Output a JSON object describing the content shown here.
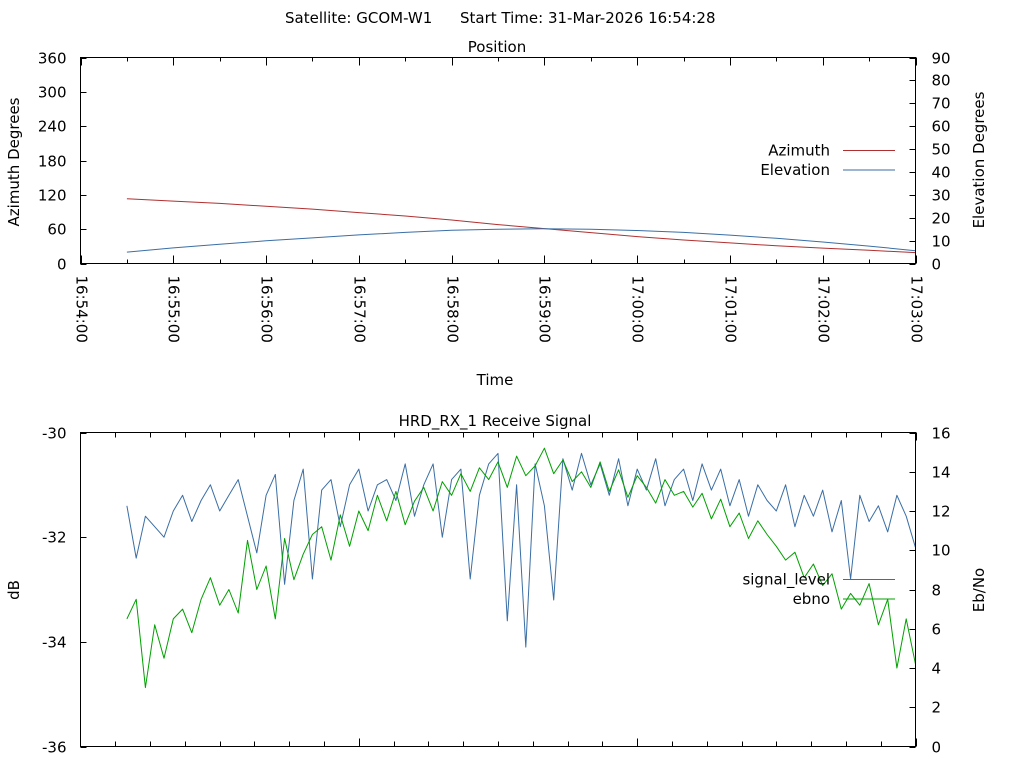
{
  "header": {
    "satellite": "Satellite: GCOM-W1",
    "start_time": "Start Time: 31-Mar-2026 16:54:28"
  },
  "chart_data": [
    {
      "type": "line",
      "title": "Position",
      "xlabel": "Time",
      "ylabel": "Azimuth Degrees",
      "y2label": "Elevation Degrees",
      "x_tick_labels": [
        "16:54:00",
        "16:55:00",
        "16:56:00",
        "16:57:00",
        "16:58:00",
        "16:59:00",
        "17:00:00",
        "17:01:00",
        "17:02:00",
        "17:03:00"
      ],
      "xlim_minutes": [
        0,
        9
      ],
      "ylim": [
        0,
        360
      ],
      "y_ticks": [
        0,
        60,
        120,
        180,
        240,
        300,
        360
      ],
      "y2lim": [
        0,
        90
      ],
      "y2_ticks": [
        0,
        10,
        20,
        30,
        40,
        50,
        60,
        70,
        80,
        90
      ],
      "legend_position": "right-center",
      "series": [
        {
          "name": "Azimuth",
          "axis": "y",
          "color": "#b03030",
          "x": [
            0.5,
            1.0,
            1.5,
            2.0,
            2.5,
            3.0,
            3.5,
            4.0,
            4.5,
            5.0,
            5.5,
            6.0,
            6.5,
            7.0,
            7.5,
            8.0,
            8.5,
            9.0
          ],
          "values": [
            113,
            109,
            105,
            100,
            95,
            89,
            83,
            76,
            68,
            61,
            54,
            47,
            41,
            36,
            31,
            27,
            23,
            19
          ]
        },
        {
          "name": "Elevation",
          "axis": "y2",
          "color": "#3a6ea5",
          "x": [
            0.5,
            1.0,
            1.5,
            2.0,
            2.5,
            3.0,
            3.5,
            4.0,
            4.5,
            5.0,
            5.5,
            6.0,
            6.5,
            7.0,
            7.5,
            8.0,
            8.5,
            9.0
          ],
          "values": [
            5.0,
            6.8,
            8.4,
            9.9,
            11.2,
            12.5,
            13.6,
            14.5,
            15.0,
            15.2,
            15.0,
            14.4,
            13.6,
            12.4,
            11.0,
            9.4,
            7.6,
            5.6
          ]
        }
      ]
    },
    {
      "type": "line",
      "title": "HRD_RX_1 Receive Signal",
      "xlabel": "",
      "ylabel": "dB",
      "y2label": "Eb/No",
      "xlim_minutes": [
        0,
        9
      ],
      "x_minor_ticks_minutes": [
        0.375,
        0.75,
        1.125,
        1.5,
        1.875,
        2.25,
        2.625,
        3.0,
        3.375,
        3.75,
        4.125,
        4.5,
        4.875,
        5.25,
        5.625,
        6.0,
        6.375,
        6.75,
        7.125,
        7.5,
        7.875,
        8.25,
        8.625,
        9.0
      ],
      "ylim": [
        -36,
        -30
      ],
      "y_ticks": [
        -36,
        -34,
        -32,
        -30
      ],
      "y2lim": [
        0,
        16
      ],
      "y2_ticks": [
        0,
        2,
        4,
        6,
        8,
        10,
        12,
        14,
        16
      ],
      "legend_position": "right-center",
      "series": [
        {
          "name": "signal_level",
          "axis": "y",
          "color": "#3a6ea5",
          "x": [
            0.5,
            0.6,
            0.7,
            0.8,
            0.9,
            1.0,
            1.1,
            1.2,
            1.3,
            1.4,
            1.5,
            1.6,
            1.7,
            1.8,
            1.9,
            2.0,
            2.1,
            2.2,
            2.3,
            2.4,
            2.5,
            2.6,
            2.7,
            2.8,
            2.9,
            3.0,
            3.1,
            3.2,
            3.3,
            3.4,
            3.5,
            3.6,
            3.7,
            3.8,
            3.9,
            4.0,
            4.1,
            4.2,
            4.3,
            4.4,
            4.5,
            4.6,
            4.7,
            4.8,
            4.9,
            5.0,
            5.1,
            5.2,
            5.3,
            5.4,
            5.5,
            5.6,
            5.7,
            5.8,
            5.9,
            6.0,
            6.1,
            6.2,
            6.3,
            6.4,
            6.5,
            6.6,
            6.7,
            6.8,
            6.9,
            7.0,
            7.1,
            7.2,
            7.3,
            7.4,
            7.5,
            7.6,
            7.7,
            7.8,
            7.9,
            8.0,
            8.1,
            8.2,
            8.3,
            8.4,
            8.5,
            8.6,
            8.7,
            8.8,
            8.9,
            9.0
          ],
          "values": [
            -31.4,
            -32.4,
            -31.6,
            -31.8,
            -32.0,
            -31.5,
            -31.2,
            -31.7,
            -31.3,
            -31.0,
            -31.5,
            -31.2,
            -30.9,
            -31.6,
            -32.3,
            -31.2,
            -30.8,
            -32.9,
            -31.3,
            -30.7,
            -32.8,
            -31.1,
            -30.9,
            -31.8,
            -31.0,
            -30.7,
            -31.5,
            -31.0,
            -30.9,
            -31.3,
            -30.6,
            -31.6,
            -31.0,
            -30.6,
            -32.0,
            -30.9,
            -30.7,
            -32.8,
            -31.2,
            -30.6,
            -30.4,
            -33.6,
            -31.0,
            -34.1,
            -30.6,
            -31.4,
            -33.2,
            -30.5,
            -31.1,
            -30.4,
            -31.0,
            -30.6,
            -31.2,
            -30.5,
            -31.4,
            -30.7,
            -31.1,
            -30.5,
            -31.4,
            -30.9,
            -30.7,
            -31.3,
            -30.6,
            -31.1,
            -30.7,
            -31.4,
            -30.9,
            -31.6,
            -31.0,
            -31.3,
            -31.5,
            -31.0,
            -31.8,
            -31.2,
            -31.6,
            -31.1,
            -31.9,
            -31.3,
            -32.8,
            -31.2,
            -31.7,
            -31.4,
            -31.9,
            -31.2,
            -31.6,
            -32.2
          ]
        },
        {
          "name": "ebno",
          "axis": "y2",
          "color": "#00a000",
          "x": [
            0.5,
            0.6,
            0.7,
            0.8,
            0.9,
            1.0,
            1.1,
            1.2,
            1.3,
            1.4,
            1.5,
            1.6,
            1.7,
            1.8,
            1.9,
            2.0,
            2.1,
            2.2,
            2.3,
            2.4,
            2.5,
            2.6,
            2.7,
            2.8,
            2.9,
            3.0,
            3.1,
            3.2,
            3.3,
            3.4,
            3.5,
            3.6,
            3.7,
            3.8,
            3.9,
            4.0,
            4.1,
            4.2,
            4.3,
            4.4,
            4.5,
            4.6,
            4.7,
            4.8,
            4.9,
            5.0,
            5.1,
            5.2,
            5.3,
            5.4,
            5.5,
            5.6,
            5.7,
            5.8,
            5.9,
            6.0,
            6.1,
            6.2,
            6.3,
            6.4,
            6.5,
            6.6,
            6.7,
            6.8,
            6.9,
            7.0,
            7.1,
            7.2,
            7.3,
            7.4,
            7.5,
            7.6,
            7.7,
            7.8,
            7.9,
            8.0,
            8.1,
            8.2,
            8.3,
            8.4,
            8.5,
            8.6,
            8.7,
            8.8,
            8.9,
            9.0
          ],
          "values": [
            6.5,
            7.5,
            3.0,
            6.2,
            4.5,
            6.5,
            7.0,
            5.8,
            7.5,
            8.6,
            7.2,
            8.0,
            6.8,
            10.5,
            8.0,
            9.2,
            6.5,
            10.6,
            8.5,
            9.8,
            10.8,
            11.2,
            9.5,
            11.8,
            10.2,
            12.0,
            11.0,
            12.8,
            11.5,
            13.0,
            11.3,
            12.5,
            13.2,
            12.0,
            13.5,
            12.8,
            13.9,
            13.0,
            14.2,
            13.6,
            14.5,
            13.2,
            14.8,
            13.8,
            14.3,
            15.2,
            13.9,
            14.6,
            13.5,
            14.0,
            13.2,
            14.5,
            13.0,
            14.1,
            12.7,
            13.8,
            13.2,
            12.4,
            13.6,
            12.8,
            13.0,
            12.2,
            12.9,
            11.6,
            12.6,
            11.2,
            11.9,
            10.6,
            11.5,
            10.8,
            10.2,
            9.5,
            9.9,
            8.6,
            9.3,
            8.2,
            8.8,
            7.0,
            7.8,
            7.2,
            8.3,
            6.2,
            7.5,
            4.0,
            6.5,
            4.2
          ]
        }
      ]
    }
  ]
}
